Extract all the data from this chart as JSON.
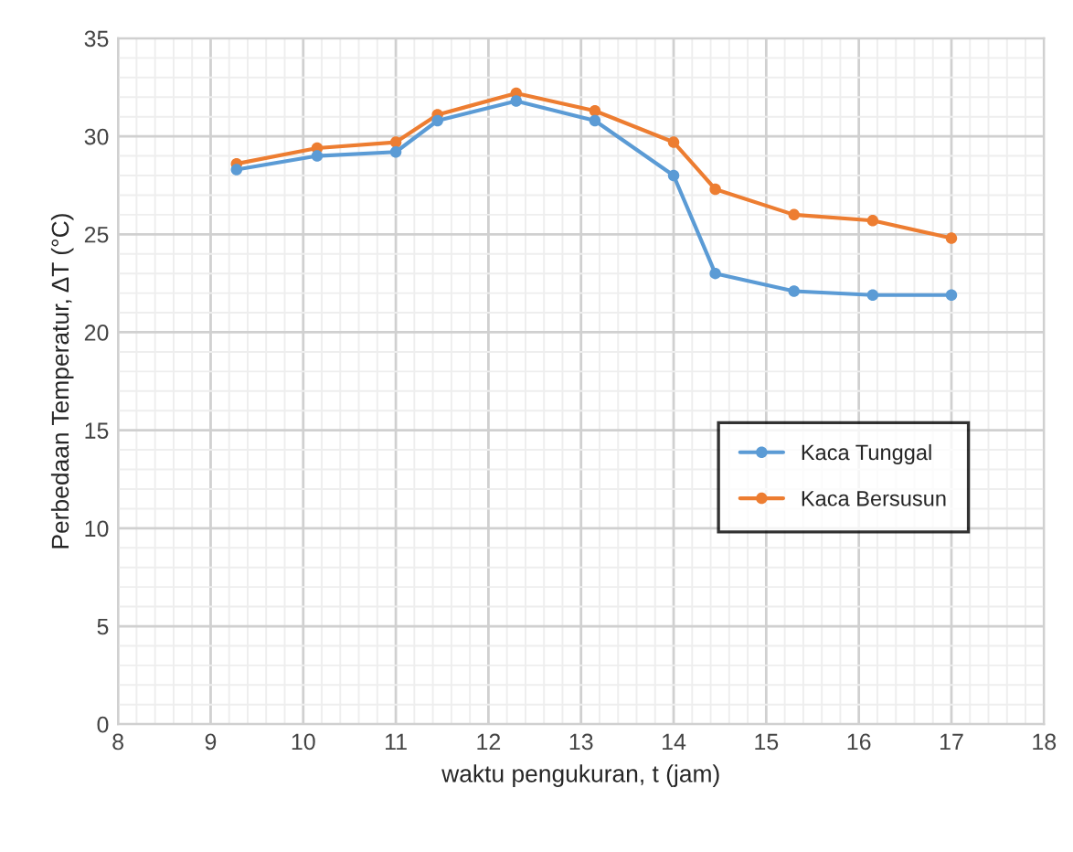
{
  "chart_data": {
    "type": "line",
    "xlabel": "waktu pengukuran, t (jam)",
    "ylabel": "Perbedaan Temperatur, ΔT (°C)",
    "x": [
      9.28,
      10.15,
      11.0,
      11.45,
      12.3,
      13.15,
      14.0,
      14.45,
      15.3,
      16.15,
      17.0
    ],
    "series": [
      {
        "name": "Kaca Tunggal",
        "color": "#5b9bd5",
        "values": [
          28.3,
          29.0,
          29.2,
          30.8,
          31.8,
          30.8,
          28.0,
          23.0,
          22.1,
          21.9,
          21.9
        ]
      },
      {
        "name": "Kaca Bersusun",
        "color": "#ed7d31",
        "values": [
          28.6,
          29.4,
          29.7,
          31.1,
          32.2,
          31.3,
          29.7,
          27.3,
          26.0,
          25.7,
          24.8
        ]
      }
    ],
    "xlim": [
      8,
      18
    ],
    "xticks": [
      8,
      9,
      10,
      11,
      12,
      13,
      14,
      15,
      16,
      17,
      18
    ],
    "ylim": [
      0,
      35
    ],
    "yticks": [
      0,
      5,
      10,
      15,
      20,
      25,
      30,
      35
    ],
    "grid": true,
    "legend": "right",
    "marker": "circle",
    "line_style": "solid"
  }
}
